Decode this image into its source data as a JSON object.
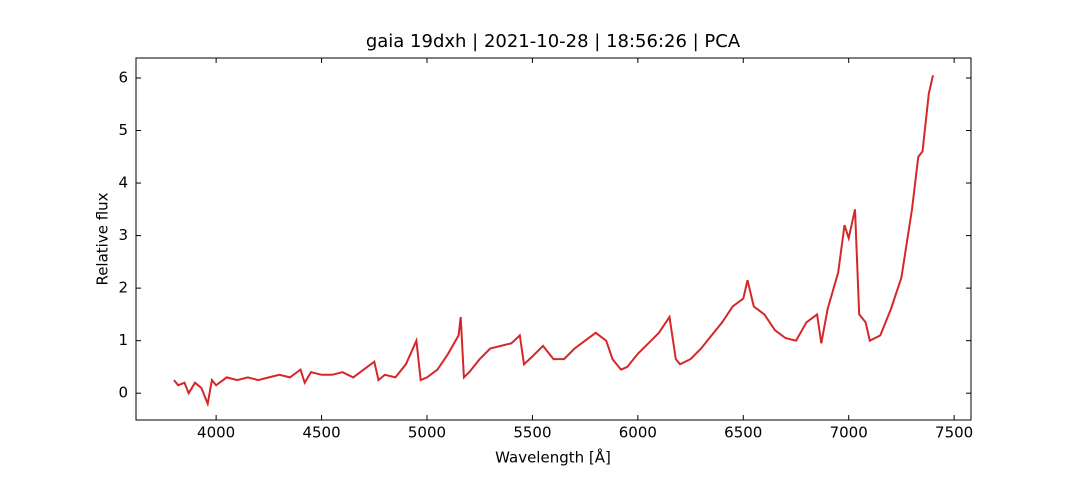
{
  "chart_data": {
    "type": "line",
    "title": "gaia 19dxh | 2021-10-28 | 18:56:26 | PCA",
    "x_label": "Wavelength [Å]",
    "y_label": "Relative flux",
    "x": [
      3800,
      3820,
      3850,
      3870,
      3900,
      3930,
      3960,
      3980,
      4000,
      4050,
      4100,
      4150,
      4200,
      4250,
      4300,
      4350,
      4400,
      4420,
      4450,
      4500,
      4550,
      4600,
      4650,
      4700,
      4750,
      4770,
      4800,
      4850,
      4900,
      4950,
      4970,
      5000,
      5050,
      5100,
      5150,
      5160,
      5175,
      5200,
      5250,
      5300,
      5350,
      5400,
      5440,
      5460,
      5500,
      5550,
      5600,
      5650,
      5700,
      5750,
      5800,
      5850,
      5880,
      5920,
      5950,
      6000,
      6050,
      6100,
      6150,
      6180,
      6200,
      6250,
      6300,
      6350,
      6400,
      6450,
      6500,
      6520,
      6550,
      6600,
      6650,
      6700,
      6750,
      6800,
      6850,
      6870,
      6900,
      6950,
      6980,
      7000,
      7030,
      7050,
      7080,
      7100,
      7150,
      7200,
      7250,
      7300,
      7330,
      7350,
      7380,
      7400
    ],
    "series": [
      {
        "name": "flux",
        "color": "#d62728",
        "values": [
          0.25,
          0.15,
          0.2,
          0.0,
          0.2,
          0.1,
          -0.2,
          0.25,
          0.15,
          0.3,
          0.25,
          0.3,
          0.25,
          0.3,
          0.35,
          0.3,
          0.45,
          0.2,
          0.4,
          0.35,
          0.35,
          0.4,
          0.3,
          0.45,
          0.6,
          0.25,
          0.35,
          0.3,
          0.55,
          1.0,
          0.25,
          0.3,
          0.45,
          0.75,
          1.1,
          1.45,
          0.3,
          0.4,
          0.65,
          0.85,
          0.9,
          0.95,
          1.1,
          0.55,
          0.7,
          0.9,
          0.65,
          0.65,
          0.85,
          1.0,
          1.15,
          1.0,
          0.65,
          0.45,
          0.5,
          0.75,
          0.95,
          1.15,
          1.45,
          0.65,
          0.55,
          0.65,
          0.85,
          1.1,
          1.35,
          1.65,
          1.8,
          2.15,
          1.65,
          1.5,
          1.2,
          1.05,
          1.0,
          1.35,
          1.5,
          0.95,
          1.6,
          2.3,
          3.2,
          2.95,
          3.5,
          1.5,
          1.35,
          1.0,
          1.1,
          1.6,
          2.2,
          3.5,
          4.5,
          4.6,
          5.7,
          6.05
        ]
      }
    ],
    "xlim": [
      3620,
      7580
    ],
    "ylim": [
      -0.51,
      6.38
    ],
    "xticks": [
      4000,
      4500,
      5000,
      5500,
      6000,
      6500,
      7000,
      7500
    ],
    "yticks": [
      0,
      1,
      2,
      3,
      4,
      5,
      6
    ]
  }
}
